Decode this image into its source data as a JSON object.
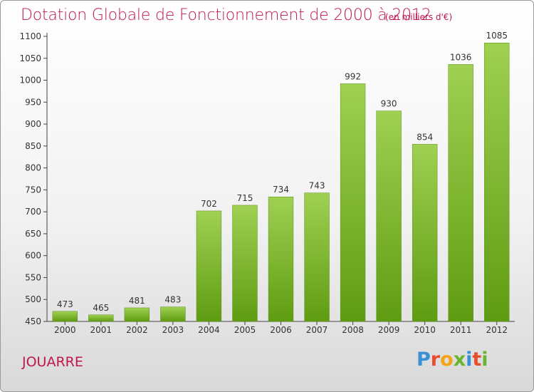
{
  "title": "Dotation Globale de Fonctionnement de 2000 à 2012",
  "subtitle": "(en milliers d'€)",
  "place": "JOUARRE",
  "logo": {
    "letters": [
      "P",
      "r",
      "o",
      "x",
      "i",
      "t",
      "i"
    ],
    "colors": [
      "#3a8fd6",
      "#e84c2f",
      "#f3a313",
      "#69b52f",
      "#3a8fd6",
      "#e84c2f",
      "#69b52f"
    ]
  },
  "colors": {
    "title": "#c0174a",
    "bar_light": "#9fd052",
    "bar_dark": "#5f9c12"
  },
  "chart_data": {
    "type": "bar",
    "title": "Dotation Globale de Fonctionnement de 2000 à 2012",
    "subtitle": "(en milliers d'€)",
    "categories": [
      "2000",
      "2001",
      "2002",
      "2003",
      "2004",
      "2005",
      "2006",
      "2007",
      "2008",
      "2009",
      "2010",
      "2011",
      "2012"
    ],
    "values": [
      473,
      465,
      481,
      483,
      702,
      715,
      734,
      743,
      992,
      930,
      854,
      1036,
      1085
    ],
    "ylim": [
      450,
      1100
    ],
    "yticks": [
      450,
      500,
      550,
      600,
      650,
      700,
      750,
      800,
      850,
      900,
      950,
      1000,
      1050,
      1100
    ],
    "grid": false,
    "xlabel": "",
    "ylabel": ""
  }
}
